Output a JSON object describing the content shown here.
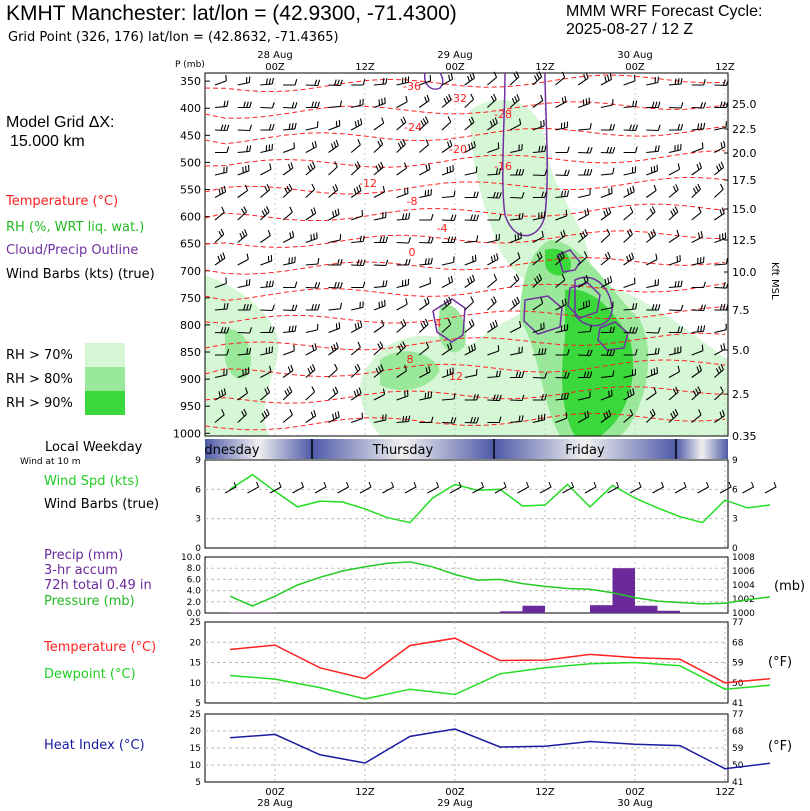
{
  "header": {
    "title": "KMHT Manchester:  lat/lon = (42.9300, -71.4300)",
    "subtitle": "Grid Point (326, 176) lat/lon = (42.8632, -71.4365)",
    "cycle_line1": "MMM WRF Forecast Cycle:",
    "cycle_line2": "2025-08-27 / 12  Z",
    "grid_label": "Model Grid ΔX:",
    "grid_value": "15.000 km"
  },
  "legend": {
    "temperature": "Temperature (°C)",
    "rh": "RH (%, WRT liq. wat.)",
    "cloud": "Cloud/Precip Outline",
    "wind": "Wind Barbs (kts) (true)",
    "rh70": "RH > 70%",
    "rh80": "RH > 80%",
    "rh90": "RH > 90%"
  },
  "colors": {
    "temperature": "#ff2020",
    "rh_light": "#d6f7d6",
    "rh_mid": "#9ae89a",
    "rh_dark": "#3ad83a",
    "cloud": "#7030a0",
    "wind_speed": "#22dd22",
    "precip": "#6a2a9a",
    "pressure": "#22cc22",
    "dewpoint": "#22dd22",
    "heat_index": "#1a1aa0"
  },
  "time_axis": {
    "top_dates": [
      "28 Aug",
      "29 Aug",
      "30 Aug"
    ],
    "top_labels": [
      "00Z",
      "12Z",
      "00Z",
      "12Z",
      "00Z",
      "12Z"
    ],
    "bottom_labels": [
      "00Z",
      "12Z",
      "00Z",
      "12Z",
      "00Z",
      "12Z"
    ],
    "bottom_dates": [
      "28 Aug",
      "29 Aug",
      "30 Aug"
    ],
    "hours": [
      0,
      12,
      24,
      36,
      48,
      60,
      72
    ]
  },
  "weekday_bar": {
    "title": "Local Weekday",
    "sub": "Wind at 10 m",
    "days": [
      "dnesday",
      "Thursday",
      "Friday"
    ]
  },
  "chart_data": [
    {
      "type": "contour",
      "name": "sounding",
      "ylabel": "P (mb)",
      "y_ticks": [
        "350",
        "400",
        "450",
        "500",
        "550",
        "600",
        "650",
        "700",
        "750",
        "800",
        "850",
        "900",
        "950",
        "1000"
      ],
      "y2label": "Kft MSL",
      "y2_ticks": [
        "25.0",
        "22.5",
        "20.0",
        "17.5",
        "15.0",
        "12.5",
        "10.0",
        "7.5",
        "5.0",
        "2.5",
        "0.35"
      ],
      "temperature_labels": [
        "-36",
        "-32",
        "-28",
        "-24",
        "-20",
        "-16",
        "-12",
        "-8",
        "-4",
        "0",
        "4",
        "8",
        "12"
      ]
    },
    {
      "type": "line",
      "name": "wind_speed",
      "legend": [
        "Wind Spd (kts)",
        "Wind Barbs (true)"
      ],
      "y_ticks": [
        "0",
        "3",
        "6",
        "9"
      ],
      "ylim": [
        0,
        9
      ],
      "x": [
        -6,
        -3,
        0,
        3,
        6,
        9,
        12,
        15,
        18,
        21,
        24,
        27,
        30,
        33,
        36,
        39,
        42,
        45,
        48,
        51,
        54,
        57,
        60,
        63,
        66
      ],
      "values": [
        6.0,
        7.5,
        5.8,
        4.2,
        4.8,
        4.7,
        4.0,
        3.1,
        2.6,
        5.1,
        6.5,
        5.9,
        6.0,
        4.3,
        4.4,
        6.5,
        4.2,
        6.4,
        5.1,
        4.1,
        3.2,
        2.6,
        4.9,
        4.1,
        4.4
      ]
    },
    {
      "type": "bar+line",
      "name": "precip_pressure",
      "legend": [
        "Precip (mm)",
        "3-hr accum",
        "72h total 0.49 in",
        "Pressure (mb)"
      ],
      "y_ticks": [
        "0.0",
        "2.0",
        "4.0",
        "6.0",
        "8.0",
        "10.0"
      ],
      "y2_ticks": [
        "1000",
        "1002",
        "1004",
        "1006",
        "1008"
      ],
      "y2label": "(mb)",
      "precip_x": [
        -3,
        0,
        33,
        36,
        45,
        48,
        51,
        54
      ],
      "precip_values": [
        0.1,
        0.1,
        0.3,
        1.3,
        1.4,
        8.0,
        1.3,
        0.4
      ],
      "pressure_x": [
        -6,
        -3,
        0,
        3,
        6,
        9,
        12,
        15,
        18,
        21,
        24,
        27,
        30,
        33,
        36,
        39,
        42,
        45,
        48,
        51,
        54,
        57,
        60,
        63,
        66
      ],
      "pressure_values": [
        1002.4,
        1001.0,
        1002.4,
        1004.0,
        1005.1,
        1006.0,
        1006.6,
        1007.1,
        1007.3,
        1006.6,
        1005.5,
        1004.7,
        1004.8,
        1004.2,
        1003.8,
        1003.5,
        1003.4,
        1002.9,
        1002.2,
        1001.7,
        1001.5,
        1001.3,
        1001.4,
        1001.9,
        1002.3
      ]
    },
    {
      "type": "line",
      "name": "temperature_dewpoint",
      "legend": [
        "Temperature (°C)",
        "Dewpoint (°C)"
      ],
      "y_ticks": [
        "5",
        "10",
        "15",
        "20",
        "25"
      ],
      "y2_ticks": [
        "41",
        "50",
        "59",
        "68",
        "77"
      ],
      "y2label": "(°F)",
      "x": [
        -6,
        0,
        6,
        12,
        18,
        24,
        30,
        36,
        42,
        48,
        54,
        60,
        66
      ],
      "temperature": [
        18.2,
        19.3,
        13.7,
        11.0,
        19.2,
        21.0,
        15.5,
        15.6,
        17.0,
        16.2,
        15.8,
        10.0,
        11.0
      ],
      "dewpoint": [
        11.8,
        10.9,
        8.8,
        6.0,
        8.4,
        7.1,
        12.2,
        13.7,
        14.7,
        15.0,
        14.2,
        8.4,
        9.4
      ]
    },
    {
      "type": "line",
      "name": "heat_index",
      "legend": [
        "Heat Index (°C)"
      ],
      "y_ticks": [
        "5",
        "10",
        "15",
        "20",
        "25"
      ],
      "y2_ticks": [
        "41",
        "50",
        "59",
        "68",
        "77"
      ],
      "y2label": "(°F)",
      "x": [
        -6,
        0,
        6,
        12,
        18,
        24,
        30,
        36,
        42,
        48,
        54,
        60,
        66
      ],
      "values": [
        18.0,
        19.0,
        13.0,
        10.6,
        18.4,
        20.6,
        15.3,
        15.5,
        16.9,
        16.1,
        15.7,
        8.9,
        10.5
      ]
    }
  ]
}
